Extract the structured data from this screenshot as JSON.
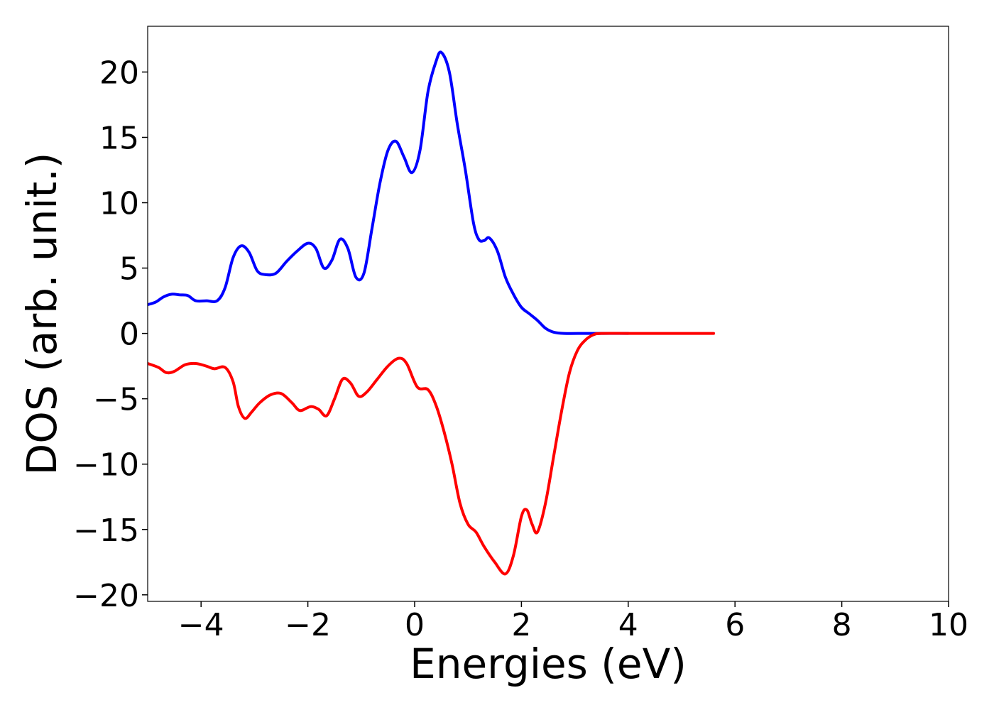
{
  "chart_data": {
    "type": "line",
    "title": "",
    "xlabel": "Energies (eV)",
    "ylabel": "DOS (arb. unit.)",
    "xlim": [
      -5,
      10
    ],
    "ylim": [
      -20.5,
      23.5
    ],
    "grid": false,
    "legend": "none",
    "xticks": [
      -4,
      -2,
      0,
      2,
      4,
      6,
      8,
      10
    ],
    "yticks": [
      -20,
      -15,
      -10,
      -5,
      0,
      5,
      10,
      15,
      20
    ],
    "xtick_labels": [
      "−4",
      "−2",
      "0",
      "2",
      "4",
      "6",
      "8",
      "10"
    ],
    "ytick_labels": [
      "−20",
      "−15",
      "−10",
      "−5",
      "0",
      "5",
      "10",
      "15",
      "20"
    ],
    "series": [
      {
        "color": "#0000ff",
        "points": [
          [
            -5.0,
            2.2
          ],
          [
            -4.85,
            2.4
          ],
          [
            -4.7,
            2.8
          ],
          [
            -4.55,
            3.0
          ],
          [
            -4.4,
            2.95
          ],
          [
            -4.25,
            2.9
          ],
          [
            -4.1,
            2.5
          ],
          [
            -3.9,
            2.5
          ],
          [
            -3.7,
            2.5
          ],
          [
            -3.55,
            3.5
          ],
          [
            -3.4,
            5.8
          ],
          [
            -3.25,
            6.7
          ],
          [
            -3.1,
            6.2
          ],
          [
            -2.95,
            4.8
          ],
          [
            -2.8,
            4.5
          ],
          [
            -2.6,
            4.6
          ],
          [
            -2.4,
            5.5
          ],
          [
            -2.2,
            6.3
          ],
          [
            -2.0,
            6.9
          ],
          [
            -1.85,
            6.5
          ],
          [
            -1.7,
            5.0
          ],
          [
            -1.55,
            5.6
          ],
          [
            -1.4,
            7.2
          ],
          [
            -1.25,
            6.5
          ],
          [
            -1.1,
            4.3
          ],
          [
            -0.95,
            4.6
          ],
          [
            -0.8,
            8.0
          ],
          [
            -0.65,
            11.5
          ],
          [
            -0.5,
            14.0
          ],
          [
            -0.35,
            14.7
          ],
          [
            -0.2,
            13.5
          ],
          [
            -0.05,
            12.3
          ],
          [
            0.1,
            14.0
          ],
          [
            0.25,
            18.5
          ],
          [
            0.4,
            20.8
          ],
          [
            0.5,
            21.5
          ],
          [
            0.65,
            20.0
          ],
          [
            0.8,
            16.0
          ],
          [
            0.95,
            12.5
          ],
          [
            1.1,
            8.5
          ],
          [
            1.2,
            7.2
          ],
          [
            1.3,
            7.1
          ],
          [
            1.4,
            7.3
          ],
          [
            1.55,
            6.3
          ],
          [
            1.7,
            4.3
          ],
          [
            1.85,
            3.0
          ],
          [
            2.0,
            2.0
          ],
          [
            2.15,
            1.5
          ],
          [
            2.3,
            1.0
          ],
          [
            2.45,
            0.4
          ],
          [
            2.6,
            0.1
          ],
          [
            2.8,
            0.0
          ],
          [
            3.2,
            0.0
          ],
          [
            3.6,
            0.0
          ],
          [
            4.0,
            0.0
          ]
        ]
      },
      {
        "color": "#ff0000",
        "points": [
          [
            -5.0,
            -2.3
          ],
          [
            -4.8,
            -2.6
          ],
          [
            -4.65,
            -3.0
          ],
          [
            -4.5,
            -2.9
          ],
          [
            -4.3,
            -2.4
          ],
          [
            -4.1,
            -2.3
          ],
          [
            -3.9,
            -2.5
          ],
          [
            -3.75,
            -2.7
          ],
          [
            -3.55,
            -2.6
          ],
          [
            -3.4,
            -3.7
          ],
          [
            -3.3,
            -5.6
          ],
          [
            -3.18,
            -6.5
          ],
          [
            -3.05,
            -6.0
          ],
          [
            -2.9,
            -5.3
          ],
          [
            -2.7,
            -4.7
          ],
          [
            -2.5,
            -4.6
          ],
          [
            -2.3,
            -5.3
          ],
          [
            -2.15,
            -5.9
          ],
          [
            -1.95,
            -5.6
          ],
          [
            -1.8,
            -5.8
          ],
          [
            -1.65,
            -6.3
          ],
          [
            -1.5,
            -5.0
          ],
          [
            -1.35,
            -3.5
          ],
          [
            -1.2,
            -3.8
          ],
          [
            -1.05,
            -4.8
          ],
          [
            -0.9,
            -4.5
          ],
          [
            -0.7,
            -3.5
          ],
          [
            -0.5,
            -2.5
          ],
          [
            -0.3,
            -1.9
          ],
          [
            -0.15,
            -2.3
          ],
          [
            0.05,
            -4.1
          ],
          [
            0.25,
            -4.3
          ],
          [
            0.4,
            -5.5
          ],
          [
            0.55,
            -7.5
          ],
          [
            0.7,
            -10.0
          ],
          [
            0.85,
            -13.0
          ],
          [
            1.0,
            -14.6
          ],
          [
            1.15,
            -15.2
          ],
          [
            1.3,
            -16.3
          ],
          [
            1.5,
            -17.5
          ],
          [
            1.7,
            -18.4
          ],
          [
            1.85,
            -17.0
          ],
          [
            2.0,
            -14.0
          ],
          [
            2.1,
            -13.5
          ],
          [
            2.2,
            -14.6
          ],
          [
            2.3,
            -15.2
          ],
          [
            2.45,
            -13.0
          ],
          [
            2.6,
            -9.5
          ],
          [
            2.75,
            -6.0
          ],
          [
            2.9,
            -3.0
          ],
          [
            3.05,
            -1.3
          ],
          [
            3.2,
            -0.5
          ],
          [
            3.35,
            -0.1
          ],
          [
            3.5,
            0.0
          ],
          [
            4.0,
            0.0
          ],
          [
            4.5,
            0.0
          ],
          [
            5.0,
            0.0
          ],
          [
            5.6,
            0.0
          ]
        ]
      }
    ]
  }
}
